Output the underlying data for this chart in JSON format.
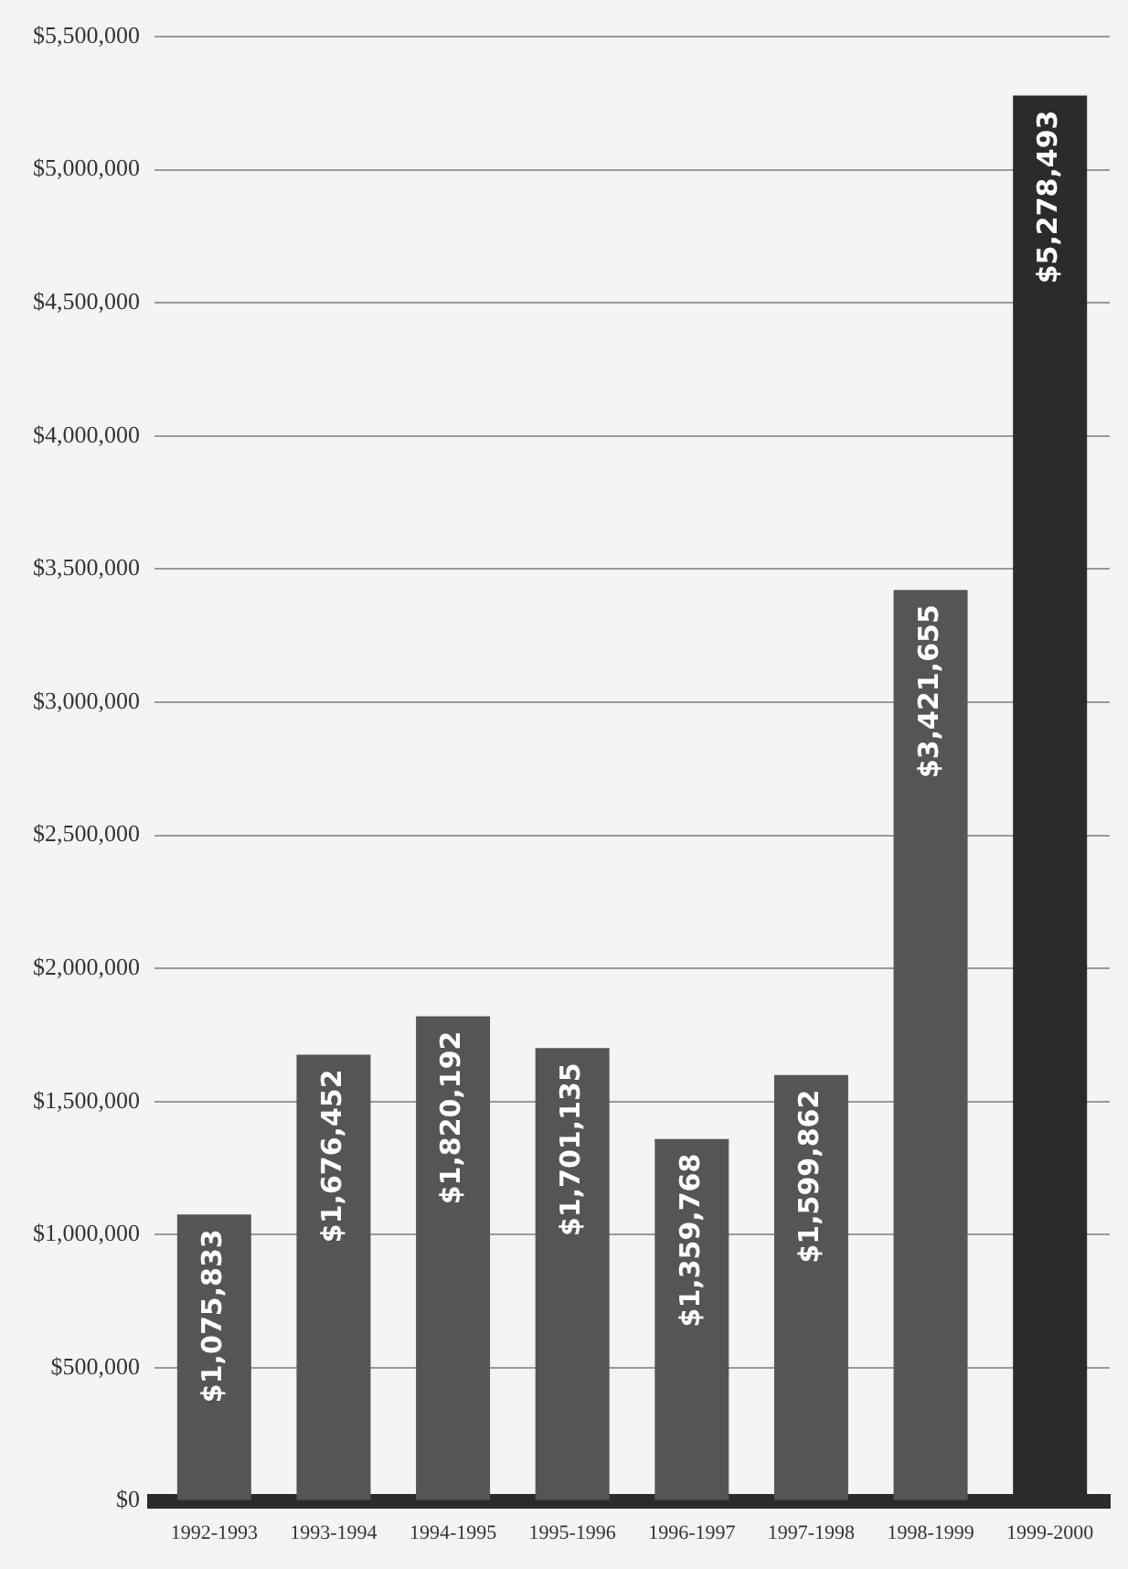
{
  "chart_data": {
    "type": "bar",
    "categories": [
      "1992-1993",
      "1993-1994",
      "1994-1995",
      "1995-1996",
      "1996-1997",
      "1997-1998",
      "1998-1999",
      "1999-2000"
    ],
    "values": [
      1075833,
      1676452,
      1820192,
      1701135,
      1359768,
      1599862,
      3421655,
      5278493
    ],
    "value_labels": [
      "$1,075,833",
      "$1,676,452",
      "$1,820,192",
      "$1,701,135",
      "$1,359,768",
      "$1,599,862",
      "$3,421,655",
      "$5,278,493"
    ],
    "colors": [
      "#555555",
      "#555555",
      "#555555",
      "#555555",
      "#555555",
      "#555555",
      "#555555",
      "#2b2b2b"
    ],
    "ylim": [
      0,
      5500000
    ],
    "yticks": [
      {
        "value": 0,
        "label": "$0"
      },
      {
        "value": 500000,
        "label": "$500,000"
      },
      {
        "value": 1000000,
        "label": "$1,000,000"
      },
      {
        "value": 1500000,
        "label": "$1,500,000"
      },
      {
        "value": 2000000,
        "label": "$2,000,000"
      },
      {
        "value": 2500000,
        "label": "$2,500,000"
      },
      {
        "value": 3000000,
        "label": "$3,000,000"
      },
      {
        "value": 3500000,
        "label": "$3,500,000"
      },
      {
        "value": 4000000,
        "label": "$4,000,000"
      },
      {
        "value": 4500000,
        "label": "$4,500,000"
      },
      {
        "value": 5000000,
        "label": "$5,000,000"
      },
      {
        "value": 5500000,
        "label": "$5,500,000"
      }
    ],
    "grid": "y"
  }
}
